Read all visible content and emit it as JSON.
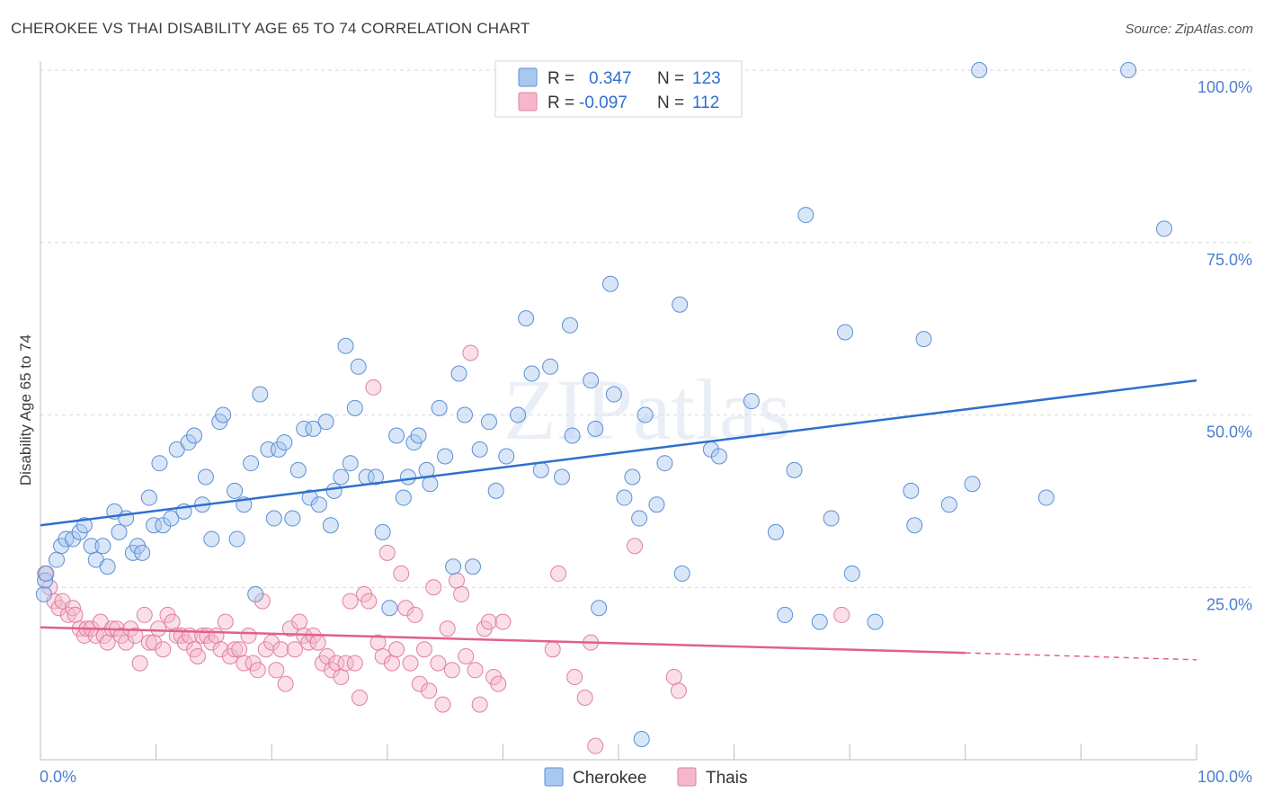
{
  "title": "CHEROKEE VS THAI DISABILITY AGE 65 TO 74 CORRELATION CHART",
  "source": "Source: ZipAtlas.com",
  "colors": {
    "cherokee_fill": "#a9c8f0",
    "cherokee_stroke": "#5b8fd6",
    "cherokee_line": "#2e6fd0",
    "thais_fill": "#f5b8cb",
    "thais_stroke": "#e27fa0",
    "thais_line": "#e0608d",
    "stat_value": "#2e6fd0",
    "grid": "#d9d9d9"
  },
  "stats_box": {
    "rows": [
      {
        "r_label": "R =",
        "r_value": "0.347",
        "n_label": "N =",
        "n_value": "123",
        "series": "cherokee"
      },
      {
        "r_label": "R =",
        "r_value": "-0.097",
        "n_label": "N =",
        "n_value": "112",
        "series": "thais"
      }
    ]
  },
  "chart_data": {
    "type": "scatter",
    "title": "CHEROKEE VS THAI DISABILITY AGE 65 TO 74 CORRELATION CHART",
    "xlabel": "",
    "ylabel": "Disability Age 65 to 74",
    "xlim": [
      0,
      100
    ],
    "ylim": [
      0,
      100
    ],
    "x_tick_labels": [
      "0.0%",
      "100.0%"
    ],
    "y_ticks": [
      25,
      50,
      75,
      100
    ],
    "y_tick_labels": [
      "25.0%",
      "50.0%",
      "75.0%",
      "100.0%"
    ],
    "grid": true,
    "legend_position": "bottom-center",
    "watermark": "ZIPatlas",
    "series": [
      {
        "name": "Cherokee",
        "trend": {
          "x0": 0,
          "y0": 34.0,
          "x1": 100,
          "y1": 55.0
        },
        "points": [
          [
            0.3,
            24
          ],
          [
            0.4,
            26
          ],
          [
            0.5,
            27
          ],
          [
            1.4,
            29
          ],
          [
            1.8,
            31
          ],
          [
            2.2,
            32
          ],
          [
            2.8,
            32
          ],
          [
            3.4,
            33
          ],
          [
            3.8,
            34
          ],
          [
            4.4,
            31
          ],
          [
            4.8,
            29
          ],
          [
            5.4,
            31
          ],
          [
            5.8,
            28
          ],
          [
            6.4,
            36
          ],
          [
            6.8,
            33
          ],
          [
            7.4,
            35
          ],
          [
            8.0,
            30
          ],
          [
            8.4,
            31
          ],
          [
            8.8,
            30
          ],
          [
            9.4,
            38
          ],
          [
            9.8,
            34
          ],
          [
            10.3,
            43
          ],
          [
            10.6,
            34
          ],
          [
            11.3,
            35
          ],
          [
            11.8,
            45
          ],
          [
            12.4,
            36
          ],
          [
            12.8,
            46
          ],
          [
            13.3,
            47
          ],
          [
            14.0,
            37
          ],
          [
            14.3,
            41
          ],
          [
            14.8,
            32
          ],
          [
            15.5,
            49
          ],
          [
            15.8,
            50
          ],
          [
            16.8,
            39
          ],
          [
            17.0,
            32
          ],
          [
            17.6,
            37
          ],
          [
            18.2,
            43
          ],
          [
            18.6,
            24
          ],
          [
            19.0,
            53
          ],
          [
            19.7,
            45
          ],
          [
            20.2,
            35
          ],
          [
            20.6,
            45
          ],
          [
            21.1,
            46
          ],
          [
            21.8,
            35
          ],
          [
            22.3,
            42
          ],
          [
            22.8,
            48
          ],
          [
            23.3,
            38
          ],
          [
            23.6,
            48
          ],
          [
            24.1,
            37
          ],
          [
            24.7,
            49
          ],
          [
            25.1,
            34
          ],
          [
            25.4,
            39
          ],
          [
            26.0,
            41
          ],
          [
            26.4,
            60
          ],
          [
            26.8,
            43
          ],
          [
            27.2,
            51
          ],
          [
            27.5,
            57
          ],
          [
            28.2,
            41
          ],
          [
            29.0,
            41
          ],
          [
            29.6,
            33
          ],
          [
            30.2,
            22
          ],
          [
            30.8,
            47
          ],
          [
            31.4,
            38
          ],
          [
            31.8,
            41
          ],
          [
            32.3,
            46
          ],
          [
            32.7,
            47
          ],
          [
            33.4,
            42
          ],
          [
            33.7,
            40
          ],
          [
            34.5,
            51
          ],
          [
            35.0,
            44
          ],
          [
            35.7,
            28
          ],
          [
            36.2,
            56
          ],
          [
            36.7,
            50
          ],
          [
            37.4,
            28
          ],
          [
            38.0,
            45
          ],
          [
            38.8,
            49
          ],
          [
            39.4,
            39
          ],
          [
            40.3,
            44
          ],
          [
            41.3,
            50
          ],
          [
            42.0,
            64
          ],
          [
            42.5,
            56
          ],
          [
            43.3,
            42
          ],
          [
            44.1,
            57
          ],
          [
            45.1,
            41
          ],
          [
            45.8,
            63
          ],
          [
            46.0,
            47
          ],
          [
            47.6,
            55
          ],
          [
            48.0,
            48
          ],
          [
            48.3,
            22
          ],
          [
            49.3,
            69
          ],
          [
            49.6,
            53
          ],
          [
            50.5,
            38
          ],
          [
            51.2,
            41
          ],
          [
            51.8,
            35
          ],
          [
            52.0,
            3
          ],
          [
            52.3,
            50
          ],
          [
            53.3,
            37
          ],
          [
            54.0,
            43
          ],
          [
            55.3,
            66
          ],
          [
            55.5,
            27
          ],
          [
            58.0,
            45
          ],
          [
            58.7,
            44
          ],
          [
            61.5,
            52
          ],
          [
            63.6,
            33
          ],
          [
            64.4,
            21
          ],
          [
            65.2,
            42
          ],
          [
            66.2,
            79
          ],
          [
            67.4,
            20
          ],
          [
            68.4,
            35
          ],
          [
            69.6,
            62
          ],
          [
            70.2,
            27
          ],
          [
            72.2,
            20
          ],
          [
            75.3,
            39
          ],
          [
            75.6,
            34
          ],
          [
            76.4,
            61
          ],
          [
            78.6,
            37
          ],
          [
            80.6,
            40
          ],
          [
            81.2,
            100
          ],
          [
            87.0,
            38
          ],
          [
            94.1,
            100
          ],
          [
            97.2,
            77
          ]
        ]
      },
      {
        "name": "Thais",
        "trend": {
          "x0": 0,
          "y0": 19.2,
          "x1": 80,
          "y1": 15.5,
          "dash_to_x": 100,
          "dash_to_y": 14.5
        },
        "points": [
          [
            0.4,
            27
          ],
          [
            0.8,
            25
          ],
          [
            1.2,
            23
          ],
          [
            1.6,
            22
          ],
          [
            1.9,
            23
          ],
          [
            2.4,
            21
          ],
          [
            2.8,
            22
          ],
          [
            3.0,
            21
          ],
          [
            3.4,
            19
          ],
          [
            3.8,
            18
          ],
          [
            4.0,
            19
          ],
          [
            4.4,
            19
          ],
          [
            4.8,
            18
          ],
          [
            5.2,
            20
          ],
          [
            5.5,
            18
          ],
          [
            5.8,
            17
          ],
          [
            6.2,
            19
          ],
          [
            6.6,
            19
          ],
          [
            7.0,
            18
          ],
          [
            7.4,
            17
          ],
          [
            7.8,
            19
          ],
          [
            8.2,
            18
          ],
          [
            8.6,
            14
          ],
          [
            9.0,
            21
          ],
          [
            9.4,
            17
          ],
          [
            9.8,
            17
          ],
          [
            10.2,
            19
          ],
          [
            10.6,
            16
          ],
          [
            11.0,
            21
          ],
          [
            11.4,
            20
          ],
          [
            11.8,
            18
          ],
          [
            12.2,
            18
          ],
          [
            12.5,
            17
          ],
          [
            12.9,
            18
          ],
          [
            13.3,
            16
          ],
          [
            13.6,
            15
          ],
          [
            14.0,
            18
          ],
          [
            14.4,
            18
          ],
          [
            14.8,
            17
          ],
          [
            15.2,
            18
          ],
          [
            15.6,
            16
          ],
          [
            16.0,
            20
          ],
          [
            16.4,
            15
          ],
          [
            16.8,
            16
          ],
          [
            17.2,
            16
          ],
          [
            17.6,
            14
          ],
          [
            18.0,
            18
          ],
          [
            18.4,
            14
          ],
          [
            18.8,
            13
          ],
          [
            19.2,
            23
          ],
          [
            19.5,
            16
          ],
          [
            20.0,
            17
          ],
          [
            20.4,
            13
          ],
          [
            20.8,
            16
          ],
          [
            21.2,
            11
          ],
          [
            21.6,
            19
          ],
          [
            22.0,
            16
          ],
          [
            22.4,
            20
          ],
          [
            22.8,
            18
          ],
          [
            23.2,
            17
          ],
          [
            23.6,
            18
          ],
          [
            24.0,
            17
          ],
          [
            24.4,
            14
          ],
          [
            24.8,
            15
          ],
          [
            25.2,
            13
          ],
          [
            25.6,
            14
          ],
          [
            26.0,
            12
          ],
          [
            26.4,
            14
          ],
          [
            26.8,
            23
          ],
          [
            27.2,
            14
          ],
          [
            27.6,
            9
          ],
          [
            28.0,
            24
          ],
          [
            28.4,
            23
          ],
          [
            28.8,
            54
          ],
          [
            29.2,
            17
          ],
          [
            29.6,
            15
          ],
          [
            30.0,
            30
          ],
          [
            30.4,
            14
          ],
          [
            30.8,
            16
          ],
          [
            31.2,
            27
          ],
          [
            31.6,
            22
          ],
          [
            32.0,
            14
          ],
          [
            32.4,
            21
          ],
          [
            32.8,
            11
          ],
          [
            33.2,
            16
          ],
          [
            33.6,
            10
          ],
          [
            34.0,
            25
          ],
          [
            34.4,
            14
          ],
          [
            34.8,
            8
          ],
          [
            35.2,
            19
          ],
          [
            35.6,
            13
          ],
          [
            36.0,
            26
          ],
          [
            36.4,
            24
          ],
          [
            36.8,
            15
          ],
          [
            37.2,
            59
          ],
          [
            37.6,
            13
          ],
          [
            38.0,
            8
          ],
          [
            38.4,
            19
          ],
          [
            38.8,
            20
          ],
          [
            39.2,
            12
          ],
          [
            39.6,
            11
          ],
          [
            40.0,
            20
          ],
          [
            44.3,
            16
          ],
          [
            44.8,
            27
          ],
          [
            46.2,
            12
          ],
          [
            47.1,
            9
          ],
          [
            47.6,
            17
          ],
          [
            48.0,
            2
          ],
          [
            51.4,
            31
          ],
          [
            54.8,
            12
          ],
          [
            55.2,
            10
          ],
          [
            69.3,
            21
          ]
        ]
      }
    ]
  },
  "legend": {
    "items": [
      {
        "label": "Cherokee",
        "series": "cherokee"
      },
      {
        "label": "Thais",
        "series": "thais"
      }
    ]
  }
}
